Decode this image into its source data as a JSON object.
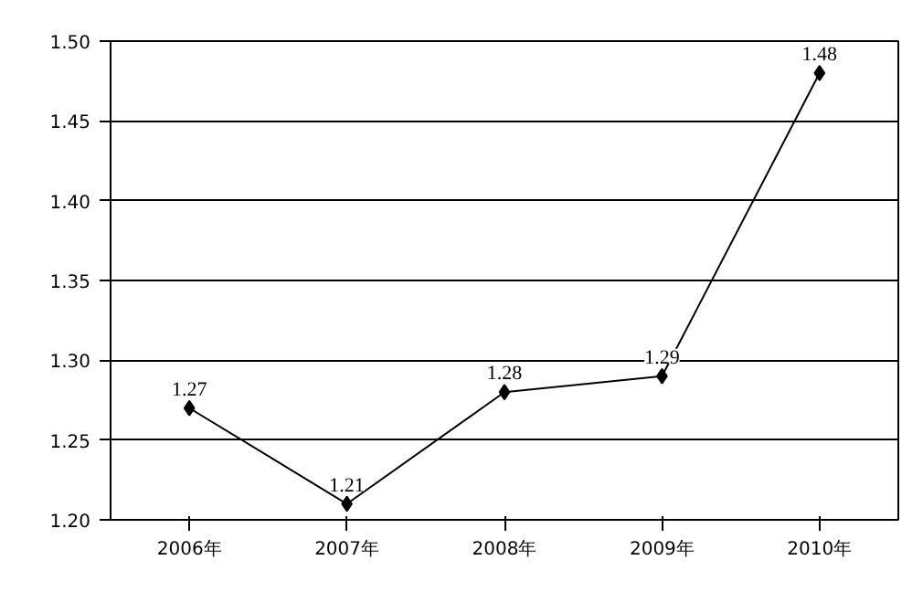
{
  "chart_data": {
    "type": "line",
    "categories": [
      "2006年",
      "2007年",
      "2008年",
      "2009年",
      "2010年"
    ],
    "series": [
      {
        "color": "#000000",
        "values": [
          1.27,
          1.21,
          1.28,
          1.29,
          1.48
        ]
      }
    ],
    "ylim": [
      1.2,
      1.5
    ],
    "yticks": [
      {
        "value": 1.2,
        "label": "1.20"
      },
      {
        "value": 1.25,
        "label": "1.25"
      },
      {
        "value": 1.3,
        "label": "1.30"
      },
      {
        "value": 1.35,
        "label": "1.35"
      },
      {
        "value": 1.4,
        "label": "1.40"
      },
      {
        "value": 1.45,
        "label": "1.45"
      },
      {
        "value": 1.5,
        "label": "1.50"
      }
    ],
    "grid": "y",
    "marker": "diamond",
    "line_style": "solid",
    "data_labels": true
  }
}
